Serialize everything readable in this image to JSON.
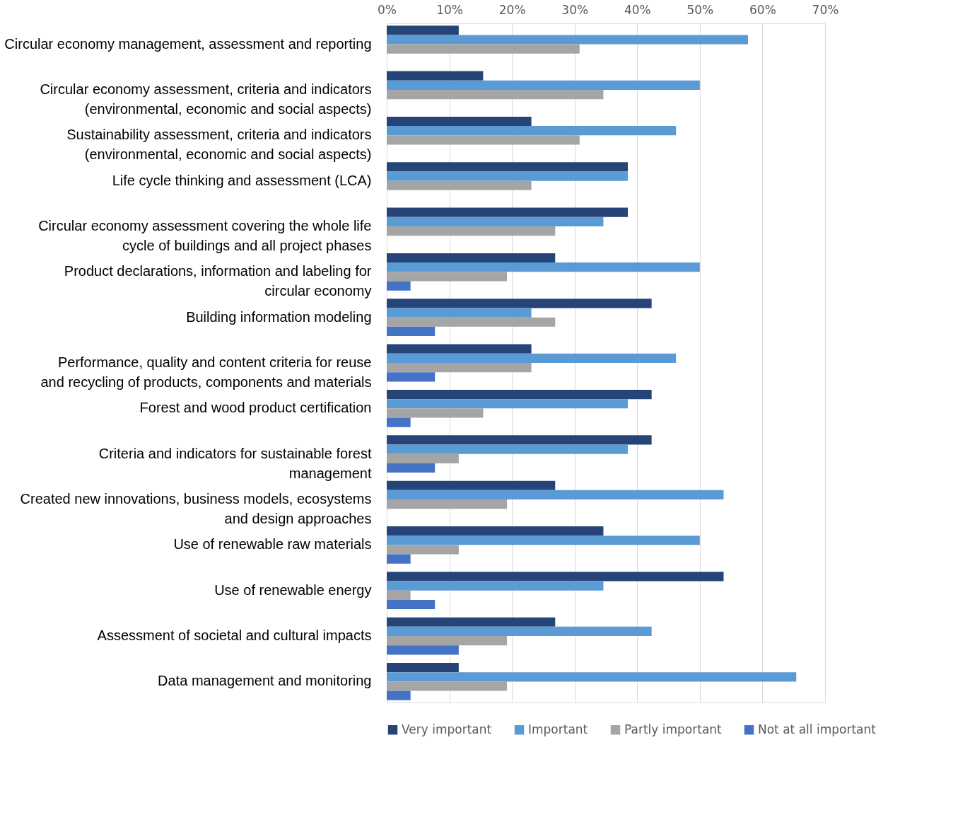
{
  "chart_data": {
    "type": "bar",
    "orientation": "horizontal",
    "categories": [
      "Circular economy management, assessment and reporting",
      "Circular economy assessment, criteria and indicators (environmental, economic and social aspects)",
      "Sustainability assessment, criteria and indicators (environmental, economic and social aspects)",
      "Life cycle thinking and assessment (LCA)",
      "Circular economy assessment covering the whole life cycle of buildings and all project phases",
      "Product declarations, information and labeling for circular economy",
      "Building information modeling",
      "Performance, quality and content criteria for reuse and recycling of products, components and materials",
      "Forest and wood product certification",
      "Criteria and indicators for sustainable forest management",
      "Created new innovations, business models, ecosystems and design approaches",
      "Use of renewable raw materials",
      "Use of renewable energy",
      "Assessment of societal and cultural impacts",
      "Data management and monitoring"
    ],
    "series": [
      {
        "name": "Very important",
        "color": "#264478",
        "values": [
          11.5,
          15.4,
          23.1,
          38.5,
          38.5,
          26.9,
          42.3,
          23.1,
          42.3,
          42.3,
          26.9,
          34.6,
          53.8,
          26.9,
          11.5
        ]
      },
      {
        "name": "Important",
        "color": "#5b9bd5",
        "values": [
          57.7,
          50,
          46.2,
          38.5,
          34.6,
          50,
          23.1,
          46.2,
          38.5,
          38.5,
          53.8,
          50,
          34.6,
          42.3,
          65.4
        ]
      },
      {
        "name": "Partly important",
        "color": "#a5a5a5",
        "values": [
          30.8,
          34.6,
          30.8,
          23.1,
          26.9,
          19.2,
          26.9,
          23.1,
          15.4,
          11.5,
          19.2,
          11.5,
          3.8,
          19.2,
          19.2
        ]
      },
      {
        "name": "Not at all important",
        "color": "#4472c4",
        "values": [
          null,
          null,
          null,
          null,
          null,
          3.8,
          7.7,
          7.7,
          3.8,
          7.7,
          null,
          3.8,
          7.7,
          11.5,
          3.8
        ]
      }
    ],
    "xlim": [
      0,
      70
    ],
    "xticks": [
      {
        "value": 0,
        "label": "0%"
      },
      {
        "value": 10,
        "label": "10%"
      },
      {
        "value": 20,
        "label": "20%"
      },
      {
        "value": 30,
        "label": "30%"
      },
      {
        "value": 40,
        "label": "40%"
      },
      {
        "value": 50,
        "label": "50%"
      },
      {
        "value": 60,
        "label": "60%"
      },
      {
        "value": 70,
        "label": "70%"
      }
    ],
    "grid": "x",
    "legend": "bottom"
  }
}
